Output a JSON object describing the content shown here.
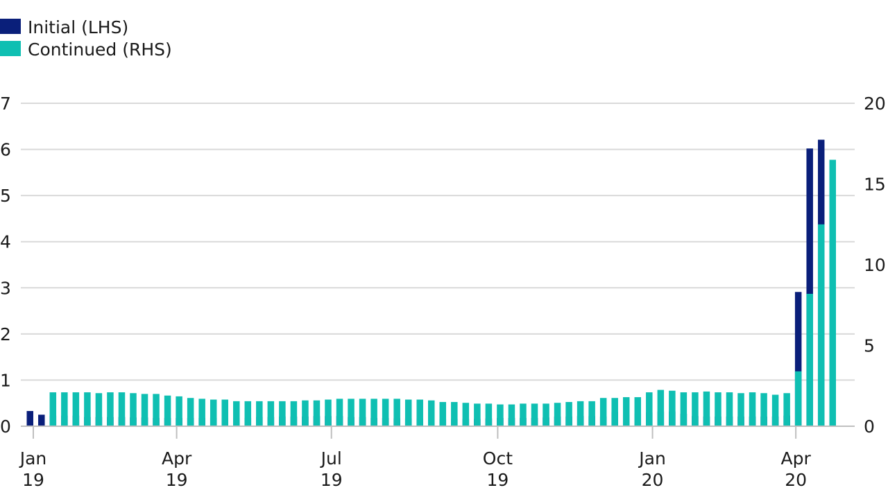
{
  "chart_data": {
    "type": "bar",
    "legend_position": "top-left",
    "grid": true,
    "colors": {
      "initial": "#0a1f7a",
      "continued": "#0fbfb2"
    },
    "series": [
      {
        "name": "Initial (LHS)",
        "axis": "left",
        "values": [
          0.33,
          0.25,
          0.23,
          0.23,
          0.23,
          0.2,
          0.2,
          0.2,
          0.2,
          0.19,
          0.19,
          0.18,
          0.18,
          0.18,
          0.18,
          0.18,
          0.18,
          0.18,
          0.18,
          0.18,
          0.2,
          0.2,
          0.21,
          0.21,
          0.21,
          0.22,
          0.22,
          0.22,
          0.2,
          0.2,
          0.18,
          0.18,
          0.17,
          0.17,
          0.17,
          0.17,
          0.15,
          0.16,
          0.16,
          0.16,
          0.17,
          0.18,
          0.18,
          0.18,
          0.18,
          0.19,
          0.21,
          0.21,
          0.22,
          0.22,
          0.21,
          0.31,
          0.25,
          0.27,
          0.3,
          0.32,
          0.32,
          0.27,
          0.22,
          0.21,
          0.21,
          0.21,
          0.21,
          0.21,
          0.21,
          0.21,
          0.23,
          2.91,
          6.02,
          6.21,
          4.97
        ]
      },
      {
        "name": "Continued (RHS)",
        "axis": "right",
        "values": [
          2.1,
          2.1,
          2.1,
          2.1,
          2.05,
          2.1,
          2.1,
          2.05,
          2.0,
          2.0,
          1.9,
          1.85,
          1.75,
          1.7,
          1.65,
          1.65,
          1.55,
          1.55,
          1.55,
          1.55,
          1.55,
          1.55,
          1.6,
          1.6,
          1.65,
          1.7,
          1.7,
          1.7,
          1.7,
          1.7,
          1.7,
          1.65,
          1.65,
          1.6,
          1.5,
          1.5,
          1.45,
          1.4,
          1.4,
          1.35,
          1.35,
          1.4,
          1.4,
          1.4,
          1.45,
          1.5,
          1.55,
          1.55,
          1.75,
          1.75,
          1.8,
          1.8,
          2.1,
          2.25,
          2.2,
          2.1,
          2.1,
          2.15,
          2.1,
          2.1,
          2.05,
          2.1,
          2.05,
          1.95,
          2.05,
          3.4,
          8.2,
          12.5,
          16.5
        ]
      }
    ],
    "left_axis": {
      "min": 0,
      "max": 7,
      "ticks": [
        "0",
        "1",
        "2",
        "3",
        "4",
        "5",
        "6",
        "7"
      ]
    },
    "right_axis": {
      "min": 0,
      "max": 20,
      "ticks": [
        "0",
        "5",
        "10",
        "15",
        "20"
      ]
    },
    "x_ticks": [
      {
        "index": 0,
        "line1": "Jan",
        "line2": "19"
      },
      {
        "index": 12.5,
        "line1": "Apr",
        "line2": "19"
      },
      {
        "index": 26,
        "line1": "Jul",
        "line2": "19"
      },
      {
        "index": 40.5,
        "line1": "Oct",
        "line2": "19"
      },
      {
        "index": 54,
        "line1": "Jan",
        "line2": "20"
      },
      {
        "index": 66.5,
        "line1": "Apr",
        "line2": "20"
      }
    ]
  }
}
